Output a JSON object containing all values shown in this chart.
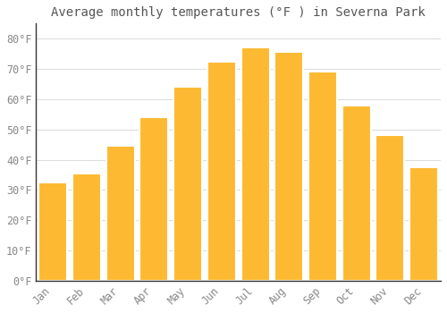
{
  "title": "Average monthly temperatures (°F ) in Severna Park",
  "months": [
    "Jan",
    "Feb",
    "Mar",
    "Apr",
    "May",
    "Jun",
    "Jul",
    "Aug",
    "Sep",
    "Oct",
    "Nov",
    "Dec"
  ],
  "values": [
    32.5,
    35.5,
    44.5,
    54.0,
    64.0,
    72.5,
    77.0,
    75.5,
    69.0,
    58.0,
    48.0,
    37.5
  ],
  "bar_color": "#FDB931",
  "bar_edge_color": "#E8A000",
  "background_color": "#FFFFFF",
  "grid_color": "#DDDDDD",
  "ylim": [
    0,
    85
  ],
  "yticks": [
    0,
    10,
    20,
    30,
    40,
    50,
    60,
    70,
    80
  ],
  "title_fontsize": 10,
  "tick_fontsize": 8.5,
  "tick_color": "#888888",
  "title_color": "#555555"
}
